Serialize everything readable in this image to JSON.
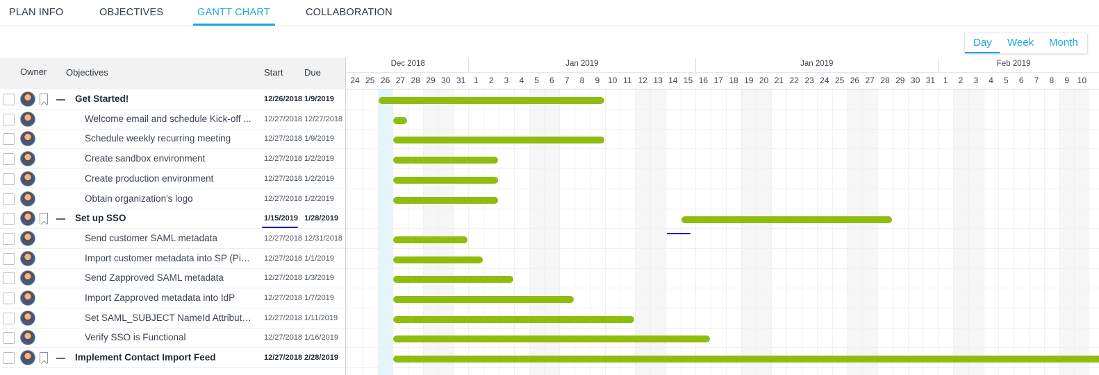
{
  "tabs": [
    "PLAN INFO",
    "OBJECTIVES",
    "GANTT CHART",
    "COLLABORATION"
  ],
  "active_tab": "GANTT CHART",
  "zoom_options": [
    "Day",
    "Week",
    "Month"
  ],
  "zoom_selected": "Day",
  "columns": {
    "owner": "Owner",
    "objectives": "Objectives",
    "start": "Start",
    "due": "Due"
  },
  "timeline": {
    "months": [
      {
        "label": "Dec 2018",
        "first_day": "24",
        "days": 8
      },
      {
        "label": "Jan 2019",
        "first_day": "1",
        "days": 15
      },
      {
        "label": "Jan 2019",
        "first_day": "16",
        "days": 16
      },
      {
        "label": "Feb 2019",
        "first_day": "1",
        "days": 10
      }
    ],
    "days": [
      "24",
      "25",
      "26",
      "27",
      "28",
      "29",
      "30",
      "31",
      "1",
      "2",
      "3",
      "4",
      "5",
      "6",
      "7",
      "8",
      "9",
      "10",
      "11",
      "12",
      "13",
      "14",
      "15",
      "16",
      "17",
      "18",
      "19",
      "20",
      "21",
      "22",
      "23",
      "24",
      "25",
      "26",
      "27",
      "28",
      "29",
      "30",
      "31",
      "1",
      "2",
      "3",
      "4",
      "5",
      "6",
      "7",
      "8",
      "9",
      "10"
    ],
    "today": "12/26/2018",
    "weekend_day_indices": [
      5,
      6,
      12,
      13,
      19,
      20,
      26,
      27,
      33,
      34,
      40,
      41,
      47,
      48
    ]
  },
  "rows": [
    {
      "type": "parent",
      "name": "Get Started!",
      "start": "12/26/2018",
      "due": "1/9/2019",
      "bar": {
        "start_day": 0,
        "end_day": 14
      }
    },
    {
      "type": "child",
      "name": "Welcome email and schedule Kick-off ...",
      "start": "12/27/2018",
      "due": "12/27/2018",
      "bar": {
        "start_day": 1,
        "end_day": 1
      }
    },
    {
      "type": "child",
      "name": "Schedule weekly recurring meeting",
      "start": "12/27/2018",
      "due": "1/9/2019",
      "bar": {
        "start_day": 1,
        "end_day": 14
      }
    },
    {
      "type": "child",
      "name": "Create sandbox environment",
      "start": "12/27/2018",
      "due": "1/2/2019",
      "bar": {
        "start_day": 1,
        "end_day": 7
      }
    },
    {
      "type": "child",
      "name": "Create production environment",
      "start": "12/27/2018",
      "due": "1/2/2019",
      "bar": {
        "start_day": 1,
        "end_day": 7
      }
    },
    {
      "type": "child",
      "name": "Obtain organization's logo",
      "start": "12/27/2018",
      "due": "1/2/2019",
      "bar": {
        "start_day": 1,
        "end_day": 7
      }
    },
    {
      "type": "parent",
      "name": "Set up SSO",
      "start": "1/15/2019",
      "due": "1/28/2019",
      "bar": {
        "start_day": 20,
        "end_day": 33
      }
    },
    {
      "type": "child",
      "name": "Send customer SAML metadata",
      "start": "12/27/2018",
      "due": "12/31/2018",
      "bar": {
        "start_day": 1,
        "end_day": 5
      }
    },
    {
      "type": "child",
      "name": "Import customer metadata into SP (Pin...",
      "start": "12/27/2018",
      "due": "1/1/2019",
      "bar": {
        "start_day": 1,
        "end_day": 6
      }
    },
    {
      "type": "child",
      "name": "Send Zapproved SAML metadata",
      "start": "12/27/2018",
      "due": "1/3/2019",
      "bar": {
        "start_day": 1,
        "end_day": 8
      }
    },
    {
      "type": "child",
      "name": "Import Zapproved metadata into IdP",
      "start": "12/27/2018",
      "due": "1/7/2019",
      "bar": {
        "start_day": 1,
        "end_day": 12
      }
    },
    {
      "type": "child",
      "name": "Set SAML_SUBJECT NameId Attribute ...",
      "start": "12/27/2018",
      "due": "1/11/2019",
      "bar": {
        "start_day": 1,
        "end_day": 16
      }
    },
    {
      "type": "child",
      "name": "Verify SSO is Functional",
      "start": "12/27/2018",
      "due": "1/16/2019",
      "bar": {
        "start_day": 1,
        "end_day": 21
      }
    },
    {
      "type": "parent",
      "name": "Implement Contact Import Feed",
      "start": "12/27/2018",
      "due": "2/28/2019",
      "bar": {
        "start_day": 1,
        "end_day": 64
      }
    }
  ],
  "colors": {
    "accent": "#1fa8d6",
    "bar": "#8fbd0f",
    "annotation": "#1414d8"
  }
}
